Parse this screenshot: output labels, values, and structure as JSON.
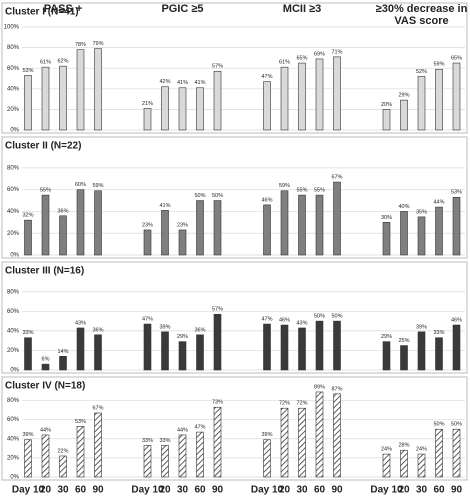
{
  "chart_data": {
    "type": "bar",
    "measures": [
      "PASS +",
      "PGIC ≥5",
      "MCII ≥3",
      "≥30% decrease in VAS score"
    ],
    "categories": [
      "Day 10",
      "20",
      "30",
      "60",
      "90"
    ],
    "clusters": [
      {
        "title": "Cluster I (N=41)",
        "color": "#d9d9d9",
        "ylim": [
          0,
          100
        ],
        "yticks": [
          {
            "value": 0,
            "label": "0%"
          },
          {
            "value": 20,
            "label": "20%"
          },
          {
            "value": 40,
            "label": "40%"
          },
          {
            "value": 60,
            "label": "60%"
          },
          {
            "value": 80,
            "label": "80%"
          },
          {
            "value": 100,
            "label": "100%"
          }
        ],
        "values": [
          [
            53,
            61,
            62,
            78,
            79
          ],
          [
            21,
            42,
            41,
            41,
            57
          ],
          [
            47,
            61,
            65,
            69,
            71
          ],
          [
            20,
            29,
            52,
            59,
            65
          ]
        ],
        "value_labels": [
          [
            "53%",
            "61%",
            "62%",
            "78%",
            "79%"
          ],
          [
            "21%",
            "42%",
            "41%",
            "41%",
            "57%"
          ],
          [
            "47%",
            "61%",
            "65%",
            "69%",
            "71%"
          ],
          [
            "20%",
            "29%",
            "52%",
            "59%",
            "65%"
          ]
        ]
      },
      {
        "title": "Cluster II (N=22)",
        "color": "#7f7f7f",
        "ylim": [
          0,
          90
        ],
        "yticks": [
          {
            "value": 0,
            "label": "0%"
          },
          {
            "value": 20,
            "label": "20%"
          },
          {
            "value": 40,
            "label": "40%"
          },
          {
            "value": 60,
            "label": "60%"
          },
          {
            "value": 80,
            "label": "80%"
          }
        ],
        "values": [
          [
            32,
            55,
            36,
            60,
            59
          ],
          [
            23,
            41,
            23,
            50,
            50
          ],
          [
            46,
            59,
            55,
            55,
            67
          ],
          [
            30,
            40,
            35,
            44,
            53
          ]
        ],
        "value_labels": [
          [
            "32%",
            "55%",
            "36%",
            "60%",
            "59%"
          ],
          [
            "23%",
            "41%",
            "23%",
            "50%",
            "50%"
          ],
          [
            "46%",
            "59%",
            "55%",
            "55%",
            "67%"
          ],
          [
            "30%",
            "40%",
            "35%",
            "44%",
            "53%"
          ]
        ]
      },
      {
        "title": "Cluster III (N=16)",
        "color": "#3a3a3a",
        "ylim": [
          0,
          90
        ],
        "yticks": [
          {
            "value": 0,
            "label": "0%"
          },
          {
            "value": 20,
            "label": "20%"
          },
          {
            "value": 40,
            "label": "40%"
          },
          {
            "value": 60,
            "label": "60%"
          },
          {
            "value": 80,
            "label": "80%"
          }
        ],
        "values": [
          [
            33,
            6,
            14,
            43,
            36
          ],
          [
            47,
            39,
            29,
            36,
            57
          ],
          [
            47,
            46,
            43,
            50,
            50
          ],
          [
            29,
            25,
            39,
            33,
            46
          ]
        ],
        "value_labels": [
          [
            "33%",
            "6%",
            "14%",
            "43%",
            "36%"
          ],
          [
            "47%",
            "39%",
            "29%",
            "36%",
            "57%"
          ],
          [
            "47%",
            "46%",
            "43%",
            "50%",
            "50%"
          ],
          [
            "29%",
            "25%",
            "39%",
            "33%",
            "46%"
          ]
        ]
      },
      {
        "title": "Cluster IV (N=18)",
        "color": "#ffffff",
        "pattern": "hatch",
        "ylim": [
          0,
          90
        ],
        "yticks": [
          {
            "value": 0,
            "label": "0%"
          },
          {
            "value": 20,
            "label": "20%"
          },
          {
            "value": 40,
            "label": "40%"
          },
          {
            "value": 60,
            "label": "60%"
          },
          {
            "value": 80,
            "label": "80%"
          }
        ],
        "values": [
          [
            39,
            44,
            22,
            53,
            67
          ],
          [
            33,
            33,
            44,
            47,
            73
          ],
          [
            39,
            72,
            72,
            89,
            87
          ],
          [
            24,
            28,
            24,
            50,
            50
          ]
        ],
        "value_labels": [
          [
            "39%",
            "44%",
            "22%",
            "53%",
            "67%"
          ],
          [
            "33%",
            "33%",
            "44%",
            "47%",
            "73%"
          ],
          [
            "39%",
            "72%",
            "72%",
            "89%",
            "87%"
          ],
          [
            "24%",
            "28%",
            "24%",
            "50%",
            "50%"
          ]
        ]
      }
    ]
  }
}
